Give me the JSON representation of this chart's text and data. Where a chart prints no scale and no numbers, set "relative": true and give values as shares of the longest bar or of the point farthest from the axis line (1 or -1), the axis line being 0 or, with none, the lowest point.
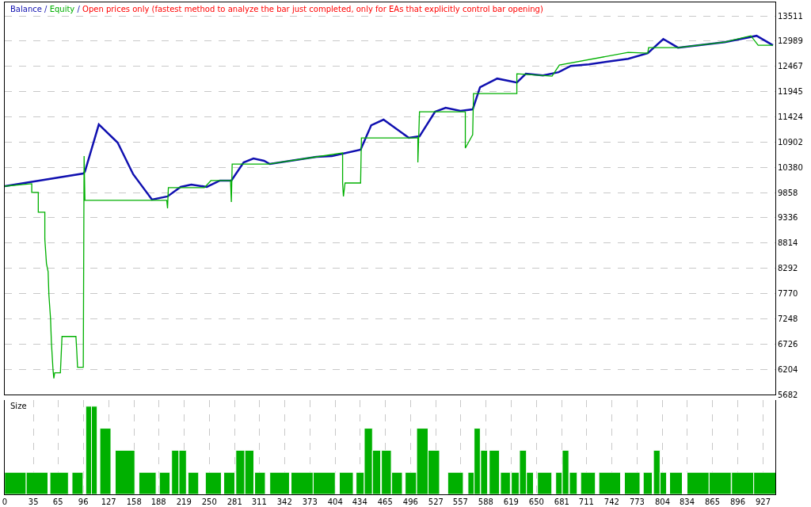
{
  "chart_data": [
    {
      "type": "line",
      "title": "Balance / Equity / Open prices only (fastest method to analyze the bar just completed, only for EAs that explicitly control bar opening)",
      "grid": true,
      "line_style": "solid",
      "tick_labels": "y",
      "xlim": [
        0,
        942
      ],
      "ylim": [
        5682,
        13790
      ],
      "yticks": [
        5682,
        6204,
        6726,
        7248,
        7770,
        8292,
        8814,
        9336,
        9858,
        10380,
        10902,
        11424,
        11945,
        12467,
        12989,
        13511
      ],
      "series": [
        {
          "color": "#1010b0",
          "x": [
            0,
            96,
            98,
            115,
            138,
            157,
            180,
            199,
            215,
            228,
            247,
            263,
            277,
            292,
            304,
            317,
            324,
            381,
            400,
            435,
            448,
            463,
            494,
            507,
            526,
            539,
            557,
            572,
            581,
            602,
            626,
            637,
            658,
            677,
            692,
            714,
            762,
            786,
            805,
            823,
            880,
            919,
            939
          ],
          "values": [
            9990,
            10252,
            10290,
            11267,
            10890,
            10236,
            9712,
            9778,
            9974,
            10023,
            9974,
            10105,
            10105,
            10481,
            10563,
            10514,
            10448,
            10596,
            10612,
            10743,
            11250,
            11365,
            10988,
            11021,
            11528,
            11610,
            11545,
            11578,
            12036,
            12215,
            12133,
            12314,
            12281,
            12347,
            12477,
            12510,
            12624,
            12739,
            13033,
            12853,
            12968,
            13099,
            12903
          ]
        },
        {
          "color": "#00b000",
          "x": [
            0,
            33,
            33,
            41,
            41,
            49,
            49,
            51,
            53,
            54,
            56,
            57,
            59,
            60,
            61,
            68,
            69,
            70,
            87,
            88,
            89,
            96,
            97,
            98,
            198,
            199,
            200,
            244,
            252,
            276,
            277,
            278,
            322,
            381,
            413,
            413,
            414,
            416,
            435,
            436,
            494,
            505,
            505,
            507,
            563,
            563,
            572,
            573,
            626,
            626,
            669,
            678,
            762,
            786,
            787,
            823,
            880,
            912,
            921,
            939
          ],
          "values": [
            9990,
            10040,
            9860,
            9860,
            9450,
            9450,
            8894,
            8387,
            8224,
            7733,
            7242,
            6767,
            6195,
            6015,
            6130,
            6130,
            6506,
            6882,
            6882,
            6588,
            6244,
            6244,
            10612,
            9696,
            9696,
            9532,
            9958,
            9958,
            10105,
            10105,
            9663,
            10448,
            10448,
            10596,
            10677,
            10055,
            9778,
            10055,
            10055,
            10988,
            10988,
            10988,
            10481,
            11528,
            11528,
            10776,
            11054,
            11905,
            11905,
            12314,
            12265,
            12494,
            12755,
            12739,
            12853,
            12853,
            12968,
            13099,
            12903,
            12903
          ]
        }
      ]
    },
    {
      "type": "bar",
      "title": "Size",
      "relative": true,
      "color": "#00b000",
      "grid": "x",
      "tick_labels": "x",
      "xlim": [
        0,
        942
      ],
      "xticks": [
        0,
        35,
        65,
        96,
        127,
        158,
        188,
        219,
        250,
        281,
        311,
        342,
        373,
        404,
        434,
        465,
        496,
        527,
        557,
        588,
        619,
        650,
        681,
        711,
        742,
        773,
        804,
        834,
        865,
        896,
        927
      ],
      "x": [
        13,
        39.5,
        66.5,
        89,
        102.5,
        109.5,
        123,
        147,
        174.5,
        195.5,
        208.5,
        217.5,
        230.5,
        255,
        274.5,
        288,
        299,
        312,
        336,
        363.5,
        390.5,
        417.5,
        434.5,
        444.5,
        454.5,
        466.5,
        479.5,
        496.5,
        510.5,
        524.5,
        551,
        570,
        577.5,
        586,
        598.5,
        612,
        624,
        633.5,
        642,
        660,
        677.5,
        685.5,
        695,
        713,
        739.5,
        767,
        786,
        797,
        805,
        820.5,
        847.5,
        874.5,
        902,
        929
      ],
      "values": [
        0.25,
        0.25,
        0.25,
        0.25,
        1,
        1,
        0.75,
        0.5,
        0.25,
        0.25,
        0.5,
        0.5,
        0.25,
        0.25,
        0.25,
        0.5,
        0.5,
        0.25,
        0.25,
        0.25,
        0.25,
        0.25,
        0.25,
        0.75,
        0.5,
        0.5,
        0.25,
        0.25,
        0.75,
        0.5,
        0.25,
        0.25,
        0.75,
        0.5,
        0.5,
        0.25,
        0.25,
        0.5,
        0.25,
        0.25,
        0.25,
        0.5,
        0.25,
        0.25,
        0.25,
        0.25,
        0.25,
        0.5,
        0.25,
        0.25,
        0.25,
        0.25,
        0.25,
        0.25
      ]
    }
  ]
}
